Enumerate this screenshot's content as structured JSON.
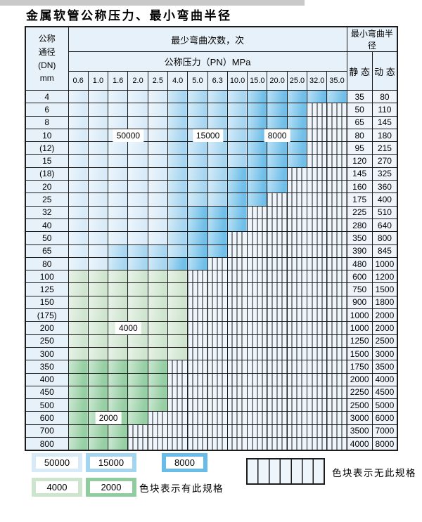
{
  "title": "金属软管公称压力、最小弯曲半径",
  "table": {
    "dn_header": "公称\n通径\n(DN)\nmm",
    "bend_times_header": "最少弯曲次数，次",
    "pressure_header": "公称压力（PN）MPa",
    "min_radius_header": "最小弯曲半径",
    "static_header": "静 态",
    "dynamic_header": "动 态",
    "pressures": [
      "0.6",
      "1.0",
      "1.6",
      "2.0",
      "2.5",
      "4.0",
      "5.0",
      "6.3",
      "10.0",
      "15.0",
      "20.0",
      "25.0",
      "32.0",
      "35.0"
    ],
    "rows": [
      {
        "dn": "4",
        "bands": [
          [
            "b50",
            5
          ],
          [
            "b15",
            4
          ],
          [
            "b8",
            5
          ]
        ],
        "static": "35",
        "dynamic": "80"
      },
      {
        "dn": "6",
        "bands": [
          [
            "b50",
            5
          ],
          [
            "b15",
            4
          ],
          [
            "b8",
            3
          ],
          [
            "hx",
            2
          ]
        ],
        "static": "50",
        "dynamic": "110"
      },
      {
        "dn": "8",
        "bands": [
          [
            "b50",
            5
          ],
          [
            "b15",
            4
          ],
          [
            "b8",
            3
          ],
          [
            "hx",
            2
          ]
        ],
        "static": "65",
        "dynamic": "145"
      },
      {
        "dn": "10",
        "bands": [
          [
            "b50",
            5
          ],
          [
            "b15",
            4
          ],
          [
            "b8",
            3
          ],
          [
            "hx",
            2
          ]
        ],
        "static": "80",
        "dynamic": "180",
        "labels": [
          {
            "text": "50000",
            "col": 3,
            "at": "edge"
          },
          {
            "text": "15000",
            "col": 7,
            "at": "edge"
          },
          {
            "text": "8000",
            "col": 10,
            "at": "center"
          }
        ]
      },
      {
        "dn": "(12)",
        "bands": [
          [
            "b50",
            5
          ],
          [
            "b15",
            4
          ],
          [
            "b8",
            3
          ],
          [
            "hx",
            2
          ]
        ],
        "static": "95",
        "dynamic": "215"
      },
      {
        "dn": "15",
        "bands": [
          [
            "b50",
            5
          ],
          [
            "b15",
            4
          ],
          [
            "b8",
            3
          ],
          [
            "hx",
            2
          ]
        ],
        "static": "120",
        "dynamic": "270"
      },
      {
        "dn": "(18)",
        "bands": [
          [
            "b50",
            5
          ],
          [
            "b15",
            3
          ],
          [
            "b8",
            3
          ],
          [
            "hx",
            3
          ]
        ],
        "static": "145",
        "dynamic": "325"
      },
      {
        "dn": "20",
        "bands": [
          [
            "b50",
            5
          ],
          [
            "b15",
            3
          ],
          [
            "b8",
            3
          ],
          [
            "hx",
            3
          ]
        ],
        "static": "160",
        "dynamic": "360"
      },
      {
        "dn": "25",
        "bands": [
          [
            "b50",
            5
          ],
          [
            "b15",
            3
          ],
          [
            "b8",
            2
          ],
          [
            "hx",
            4
          ]
        ],
        "static": "175",
        "dynamic": "400"
      },
      {
        "dn": "32",
        "bands": [
          [
            "b50",
            5
          ],
          [
            "b15",
            1
          ],
          [
            "b8",
            3
          ],
          [
            "hx",
            5
          ]
        ],
        "static": "225",
        "dynamic": "510"
      },
      {
        "dn": "40",
        "bands": [
          [
            "b50",
            5
          ],
          [
            "b15",
            1
          ],
          [
            "b8",
            3
          ],
          [
            "hx",
            5
          ]
        ],
        "static": "280",
        "dynamic": "640"
      },
      {
        "dn": "50",
        "bands": [
          [
            "b50",
            5
          ],
          [
            "b15",
            1
          ],
          [
            "b8",
            2
          ],
          [
            "hx",
            6
          ]
        ],
        "static": "350",
        "dynamic": "800"
      },
      {
        "dn": "65",
        "bands": [
          [
            "b50",
            2
          ],
          [
            "b15",
            4
          ],
          [
            "b8",
            2
          ],
          [
            "hx",
            6
          ]
        ],
        "static": "390",
        "dynamic": "845"
      },
      {
        "dn": "80",
        "bands": [
          [
            "b50",
            2
          ],
          [
            "b15",
            3
          ],
          [
            "b8",
            2
          ],
          [
            "hx",
            7
          ]
        ],
        "static": "480",
        "dynamic": "1000"
      },
      {
        "dn": "100",
        "bands": [
          [
            "g4",
            6
          ],
          [
            "hx",
            8
          ]
        ],
        "static": "600",
        "dynamic": "1200"
      },
      {
        "dn": "125",
        "bands": [
          [
            "g4",
            6
          ],
          [
            "hx",
            8
          ]
        ],
        "static": "750",
        "dynamic": "1500"
      },
      {
        "dn": "150",
        "bands": [
          [
            "g4",
            6
          ],
          [
            "hx",
            8
          ]
        ],
        "static": "900",
        "dynamic": "1800"
      },
      {
        "dn": "(175)",
        "bands": [
          [
            "g4",
            6
          ],
          [
            "hx",
            8
          ]
        ],
        "static": "1000",
        "dynamic": "2000"
      },
      {
        "dn": "200",
        "bands": [
          [
            "g4",
            6
          ],
          [
            "hx",
            8
          ]
        ],
        "static": "1000",
        "dynamic": "2000",
        "labels": [
          {
            "text": "4000",
            "col": 3,
            "at": "edge"
          }
        ]
      },
      {
        "dn": "250",
        "bands": [
          [
            "g4",
            6
          ],
          [
            "hx",
            8
          ]
        ],
        "static": "1250",
        "dynamic": "2500"
      },
      {
        "dn": "300",
        "bands": [
          [
            "g4",
            6
          ],
          [
            "hx",
            8
          ]
        ],
        "static": "1500",
        "dynamic": "3000"
      },
      {
        "dn": "350",
        "bands": [
          [
            "g2",
            5
          ],
          [
            "hx",
            9
          ]
        ],
        "static": "1750",
        "dynamic": "3500"
      },
      {
        "dn": "400",
        "bands": [
          [
            "g2",
            5
          ],
          [
            "hx",
            9
          ]
        ],
        "static": "2000",
        "dynamic": "4000"
      },
      {
        "dn": "450",
        "bands": [
          [
            "g2",
            5
          ],
          [
            "hx",
            9
          ]
        ],
        "static": "2250",
        "dynamic": "4500"
      },
      {
        "dn": "500",
        "bands": [
          [
            "g2",
            5
          ],
          [
            "hx",
            9
          ]
        ],
        "static": "2500",
        "dynamic": "5000"
      },
      {
        "dn": "600",
        "bands": [
          [
            "g2",
            4
          ],
          [
            "hx",
            10
          ]
        ],
        "static": "3000",
        "dynamic": "6000",
        "labels": [
          {
            "text": "2000",
            "col": 2,
            "at": "edge"
          }
        ]
      },
      {
        "dn": "700",
        "bands": [
          [
            "g2",
            3
          ],
          [
            "hx",
            11
          ]
        ],
        "static": "3500",
        "dynamic": "7000"
      },
      {
        "dn": "800",
        "bands": [
          [
            "g2",
            3
          ],
          [
            "hx",
            11
          ]
        ],
        "static": "4000",
        "dynamic": "8000"
      }
    ]
  },
  "legend": {
    "items": [
      {
        "value": "50000",
        "band": "b50"
      },
      {
        "value": "15000",
        "band": "b15"
      },
      {
        "value": "8000",
        "band": "b8"
      },
      {
        "value": "4000",
        "band": "g4"
      },
      {
        "value": "2000",
        "band": "g2"
      }
    ],
    "has_spec_text": "色块表示有此规格",
    "no_spec_text": "色块表示无此规格"
  },
  "colors": {
    "b50": "#d7eaf8",
    "b15": "#a3d4f0",
    "b8": "#69bce8",
    "g4": "#cde4cd",
    "g2": "#90cc9e",
    "hatch_bg": "#eef5fb",
    "header_bg": "#e7f1f9",
    "cell_bg": "#eff4fa",
    "grid": "#1c1c1c"
  }
}
